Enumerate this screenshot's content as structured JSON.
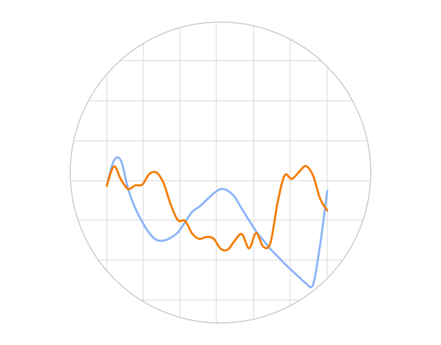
{
  "chart_data": {
    "type": "line",
    "title": "",
    "xlabel": "",
    "ylabel": "",
    "xlim": [
      0,
      31
    ],
    "ylim": [
      0,
      1
    ],
    "grid": true,
    "legend": "none",
    "series": [
      {
        "color": "#8ab4f8",
        "x": [
          0,
          1,
          2,
          3,
          4,
          5,
          6,
          7,
          8,
          9,
          10,
          11,
          12,
          13,
          14,
          15,
          16,
          17,
          18,
          19,
          20,
          21,
          22,
          23,
          24,
          25,
          26,
          27,
          28,
          29,
          30,
          31
        ],
        "y": [
          0.4565,
          0.5392,
          0.5386,
          0.4457,
          0.3826,
          0.3368,
          0.2995,
          0.2779,
          0.2758,
          0.2854,
          0.3027,
          0.3364,
          0.3706,
          0.3872,
          0.4088,
          0.4306,
          0.4452,
          0.4402,
          0.4186,
          0.3799,
          0.3423,
          0.3056,
          0.2768,
          0.2481,
          0.2242,
          0.1996,
          0.1773,
          0.1563,
          0.1354,
          0.1309,
          0.2641,
          0.4391
        ]
      },
      {
        "color": "#f57c00",
        "x": [
          0,
          1,
          2,
          3,
          4,
          5,
          6,
          7,
          8,
          9,
          10,
          11,
          12,
          13,
          14,
          15,
          16,
          17,
          18,
          19,
          20,
          21,
          22,
          23,
          24,
          25,
          26,
          27,
          28,
          29,
          30,
          31
        ],
        "y": [
          0.4565,
          0.5201,
          0.4767,
          0.4457,
          0.4576,
          0.4602,
          0.4954,
          0.4998,
          0.4639,
          0.3935,
          0.3429,
          0.3407,
          0.2989,
          0.2813,
          0.2876,
          0.2824,
          0.2491,
          0.2459,
          0.2758,
          0.2971,
          0.2502,
          0.3004,
          0.2554,
          0.2678,
          0.3994,
          0.4899,
          0.4789,
          0.5011,
          0.5211,
          0.4895,
          0.4131,
          0.3744
        ]
      }
    ]
  }
}
